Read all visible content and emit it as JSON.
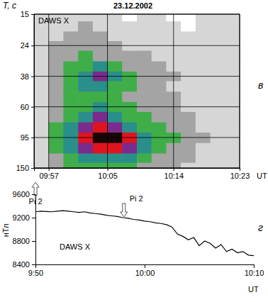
{
  "chart_data": [
    {
      "type": "heatmap",
      "title": "23.12.2002",
      "label": "DAWS X",
      "panel": "в",
      "xlabel": "UT",
      "ylabel": "T, с",
      "log": "y",
      "grid": true,
      "x": [
        596,
        598,
        600,
        602,
        604,
        606,
        608,
        610,
        612,
        614,
        616,
        618,
        620,
        622
      ],
      "y": [
        15.5,
        18,
        21,
        24,
        28,
        33,
        38,
        44,
        52,
        60,
        70,
        82,
        95,
        112,
        130,
        148
      ],
      "cells": [
        [
          1,
          1,
          1,
          1,
          1,
          1,
          0,
          1,
          1,
          0,
          0,
          1,
          1,
          1
        ],
        [
          1,
          1,
          1,
          2,
          1,
          1,
          1,
          1,
          1,
          1,
          0,
          1,
          1,
          1
        ],
        [
          1,
          1,
          2,
          2,
          2,
          1,
          1,
          1,
          1,
          1,
          1,
          1,
          1,
          1
        ],
        [
          1,
          2,
          2,
          2,
          2,
          2,
          1,
          1,
          1,
          1,
          1,
          1,
          1,
          1
        ],
        [
          1,
          2,
          2,
          3,
          2,
          2,
          2,
          2,
          1,
          1,
          1,
          1,
          1,
          1
        ],
        [
          1,
          2,
          3,
          3,
          4,
          3,
          2,
          2,
          2,
          1,
          1,
          1,
          1,
          1
        ],
        [
          1,
          2,
          3,
          4,
          5,
          4,
          3,
          2,
          2,
          2,
          1,
          1,
          1,
          1
        ],
        [
          1,
          2,
          3,
          4,
          4,
          3,
          3,
          2,
          2,
          1,
          1,
          1,
          1,
          1
        ],
        [
          1,
          2,
          3,
          3,
          3,
          3,
          2,
          2,
          2,
          2,
          1,
          1,
          1,
          1
        ],
        [
          1,
          2,
          3,
          3,
          4,
          3,
          3,
          2,
          2,
          2,
          1,
          1,
          1,
          1
        ],
        [
          1,
          2,
          3,
          4,
          5,
          4,
          3,
          3,
          2,
          2,
          2,
          1,
          1,
          1
        ],
        [
          1,
          3,
          4,
          5,
          6,
          5,
          4,
          3,
          3,
          2,
          2,
          1,
          1,
          1
        ],
        [
          1,
          3,
          4,
          6,
          7,
          7,
          6,
          4,
          3,
          3,
          2,
          2,
          1,
          1
        ],
        [
          1,
          3,
          4,
          5,
          6,
          6,
          5,
          4,
          3,
          2,
          2,
          1,
          1,
          1
        ],
        [
          1,
          2,
          3,
          4,
          4,
          4,
          4,
          3,
          2,
          2,
          2,
          1,
          1,
          1
        ],
        [
          1,
          2,
          3,
          3,
          3,
          3,
          3,
          2,
          2,
          2,
          1,
          1,
          1,
          1
        ]
      ],
      "colors": [
        "#ffffff",
        "#d6d6d6",
        "#a4a4a4",
        "#3fae49",
        "#2a8f8a",
        "#7a2b8c",
        "#e0141e",
        "#1a0505"
      ],
      "xlim": [
        595,
        623
      ],
      "xticks": [
        {
          "value": 597,
          "label": "09:57"
        },
        {
          "value": 605,
          "label": "10:05"
        },
        {
          "value": 614,
          "label": "10:14"
        },
        {
          "value": 623,
          "label": "10:23"
        }
      ],
      "ylim": [
        150,
        15
      ],
      "yticks": [
        15,
        24,
        38,
        60,
        95,
        150
      ],
      "annotations": [
        {
          "text": "Pi 2",
          "x": 595.2
        }
      ]
    },
    {
      "type": "line",
      "label": "DAWS X",
      "panel": "г",
      "xlabel": "UT",
      "ylabel": "нТл",
      "color": "#000000",
      "x": [
        590,
        590.5,
        591,
        591.5,
        592,
        592.5,
        593,
        593.5,
        594,
        594.5,
        595,
        595.5,
        596,
        596.5,
        597,
        597.5,
        598,
        598.5,
        599,
        599.5,
        600,
        600.5,
        601,
        601.5,
        602,
        602.5,
        603,
        603.5,
        604,
        604.5,
        605,
        605.5,
        606,
        606.5,
        607,
        607.5,
        608,
        608.5,
        609,
        609.5,
        610
      ],
      "values": [
        9300,
        9310,
        9305,
        9300,
        9310,
        9320,
        9310,
        9300,
        9290,
        9300,
        9280,
        9270,
        9260,
        9240,
        9230,
        9220,
        9200,
        9190,
        9170,
        9160,
        9140,
        9130,
        9110,
        9100,
        9080,
        9040,
        8920,
        8880,
        8820,
        8860,
        8720,
        8800,
        8760,
        8680,
        8740,
        8620,
        8660,
        8600,
        8620,
        8560,
        8550
      ],
      "xlim": [
        590,
        610
      ],
      "xticks": [
        {
          "value": 590,
          "label": "9:50"
        },
        {
          "value": 600,
          "label": "10:00"
        },
        {
          "value": 610,
          "label": "10:10"
        }
      ],
      "ylim": [
        8400,
        9600
      ],
      "yticks": [
        8400,
        8800,
        9200,
        9600
      ],
      "annotations": [
        {
          "text": "Pi 2",
          "x": 598.1
        }
      ]
    }
  ]
}
